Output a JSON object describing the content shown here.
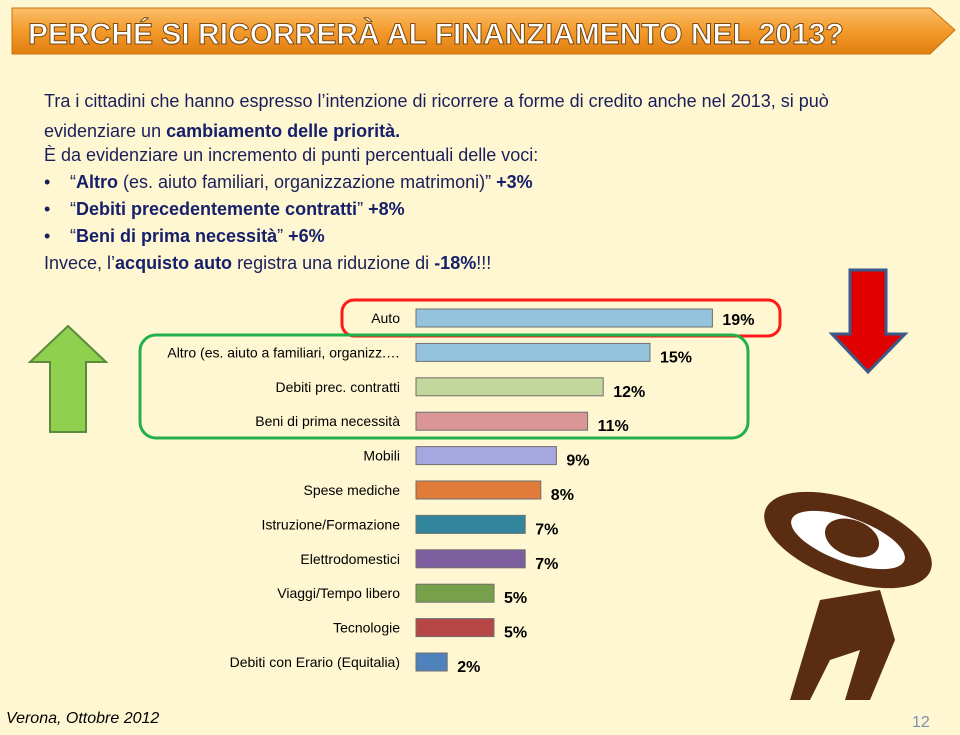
{
  "slide": {
    "title": "PERCHÉ SI RICORRERÀ AL FINANZIAMENTO NEL 2013?",
    "paragraphs": [
      [
        {
          "text": "Tra i cittadini che  hanno espresso l’intenzione di ricorrere a forme di credito anche nel 2013, si può evidenziare un ",
          "bold": false
        },
        {
          "text": "cambiamento delle priorità.",
          "bold": true
        }
      ],
      [
        {
          "text": "È da evidenziare un incremento di punti percentuali delle voci:",
          "bold": false
        }
      ]
    ],
    "bullets": [
      [
        {
          "text": "“",
          "bold": false
        },
        {
          "text": "Altro",
          "bold": true
        },
        {
          "text": " (es. aiuto familiari, organizzazione matrimoni)” ",
          "bold": false
        },
        {
          "text": "+3%",
          "bold": true
        }
      ],
      [
        {
          "text": "“",
          "bold": false
        },
        {
          "text": "Debiti precedentemente contratti",
          "bold": true
        },
        {
          "text": "” ",
          "bold": false
        },
        {
          "text": "+8%",
          "bold": true
        }
      ],
      [
        {
          "text": "“",
          "bold": false
        },
        {
          "text": "Beni di prima necessità",
          "bold": true
        },
        {
          "text": "” ",
          "bold": false
        },
        {
          "text": "+6%",
          "bold": true
        }
      ]
    ],
    "closing": [
      {
        "text": "Invece, l’",
        "bold": false
      },
      {
        "text": "acquisto auto",
        "bold": true
      },
      {
        "text": " registra una riduzione di ",
        "bold": false
      },
      {
        "text": "-18%",
        "bold": true
      },
      {
        "text": "!!!",
        "bold": false
      }
    ],
    "footer": "Verona, Ottobre 2012",
    "page_number": "12"
  },
  "chart_data": {
    "type": "bar",
    "orientation": "horizontal",
    "categories": [
      "Auto",
      "Altro (es. aiuto a familiari, organizz.…",
      "Debiti prec. contratti",
      "Beni di prima necessità",
      "Mobili",
      "Spese mediche",
      "Istruzione/Formazione",
      "Elettrodomestici",
      "Viaggi/Tempo libero",
      "Tecnologie",
      "Debiti con Erario (Equitalia)"
    ],
    "values": [
      19,
      15,
      12,
      11,
      9,
      8,
      7,
      7,
      5,
      5,
      2
    ],
    "value_labels": [
      "19%",
      "15%",
      "12%",
      "11%",
      "9%",
      "8%",
      "7%",
      "7%",
      "5%",
      "5%",
      "2%"
    ],
    "colors": [
      "#93c3dd",
      "#93c3dd",
      "#c3d69b",
      "#d99694",
      "#a6a6e0",
      "#e07b39",
      "#31859c",
      "#7d5fa0",
      "#77a04b",
      "#b64545",
      "#4f81bd"
    ]
  }
}
